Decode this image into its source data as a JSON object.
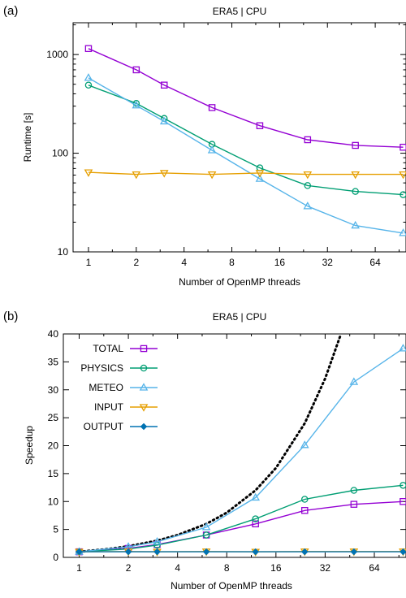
{
  "panels": [
    {
      "panel_label": "(a)",
      "chart_data": {
        "type": "line",
        "title": "ERA5 | CPU",
        "xlabel": "Number of OpenMP threads",
        "ylabel": "Runtime [s]",
        "x_scale": "log2",
        "y_scale": "log10",
        "xlim": [
          0.8,
          100
        ],
        "ylim": [
          10,
          2100
        ],
        "x_ticks": [
          1,
          2,
          4,
          8,
          16,
          32,
          64
        ],
        "x_tick_labels": [
          "1",
          "2",
          "4",
          "8",
          "16",
          "32",
          "64"
        ],
        "y_ticks": [
          10,
          100,
          1000
        ],
        "y_tick_labels": [
          "10",
          "100",
          "1000"
        ],
        "grid": false,
        "legend": "",
        "x": [
          1,
          2,
          3,
          6,
          12,
          24,
          48,
          96
        ],
        "series": [
          {
            "name": "",
            "color": "#9400d3",
            "marker": "square",
            "values": [
              1150,
              700,
              490,
              290,
              190,
              137,
              120,
              115
            ]
          },
          {
            "name": "",
            "color": "#009e73",
            "marker": "circle",
            "values": [
              490,
              320,
              225,
              123,
              71,
              47,
              41,
              38
            ]
          },
          {
            "name": "",
            "color": "#56b4e9",
            "marker": "triangle-up",
            "values": [
              580,
              305,
              210,
              107,
              55,
              29,
              18.5,
              15.5
            ]
          },
          {
            "name": "",
            "color": "#e69f00",
            "marker": "triangle-down",
            "values": [
              64,
              61,
              63,
              61,
              63,
              61,
              61,
              61
            ]
          }
        ]
      }
    },
    {
      "panel_label": "(b)",
      "chart_data": {
        "type": "line",
        "title": "ERA5 | CPU",
        "xlabel": "Number of OpenMP threads",
        "ylabel": "Speedup",
        "x_scale": "log2",
        "y_scale": "linear",
        "xlim": [
          0.8,
          100
        ],
        "ylim": [
          0,
          40
        ],
        "x_ticks": [
          1,
          2,
          4,
          8,
          16,
          32,
          64
        ],
        "x_tick_labels": [
          "1",
          "2",
          "4",
          "8",
          "16",
          "32",
          "64"
        ],
        "y_ticks": [
          0,
          5,
          10,
          15,
          20,
          25,
          30,
          35,
          40
        ],
        "y_tick_labels": [
          "0",
          "5",
          "10",
          "15",
          "20",
          "25",
          "30",
          "35",
          "40"
        ],
        "grid": false,
        "legend": "top-left",
        "x": [
          1,
          2,
          3,
          6,
          12,
          24,
          48,
          96
        ],
        "series": [
          {
            "name": "TOTAL",
            "color": "#9400d3",
            "marker": "square",
            "values": [
              1,
              1.6,
              2.3,
              4.0,
              6.0,
              8.4,
              9.5,
              10.0
            ]
          },
          {
            "name": "PHYSICS",
            "color": "#009e73",
            "marker": "circle",
            "values": [
              1,
              1.5,
              2.2,
              4.0,
              6.9,
              10.4,
              12.0,
              12.9
            ]
          },
          {
            "name": "METEO",
            "color": "#56b4e9",
            "marker": "triangle-up",
            "values": [
              1,
              1.9,
              2.8,
              5.4,
              10.7,
              20.1,
              31.4,
              37.4
            ]
          },
          {
            "name": "INPUT",
            "color": "#e69f00",
            "marker": "triangle-down",
            "values": [
              1,
              1.05,
              1.0,
              1.05,
              1.0,
              1.05,
              1.05,
              1.05
            ]
          },
          {
            "name": "OUTPUT",
            "color": "#0072b2",
            "marker": "diamond",
            "values": [
              1,
              1,
              1,
              1,
              1,
              1,
              1,
              1
            ]
          }
        ],
        "ideal": {
          "color": "#000000",
          "style": "dotted",
          "x": [
            1,
            1.5,
            2,
            3,
            4,
            6,
            8,
            12,
            16,
            24,
            32,
            40
          ]
        }
      }
    }
  ]
}
